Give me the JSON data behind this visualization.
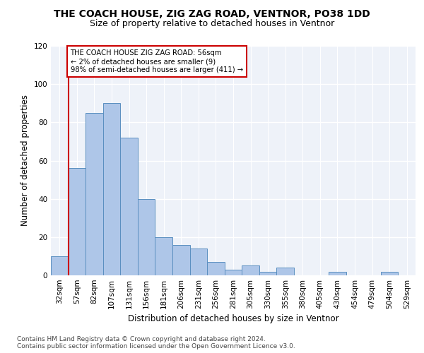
{
  "title": "THE COACH HOUSE, ZIG ZAG ROAD, VENTNOR, PO38 1DD",
  "subtitle": "Size of property relative to detached houses in Ventnor",
  "xlabel": "Distribution of detached houses by size in Ventnor",
  "ylabel": "Number of detached properties",
  "categories": [
    "32sqm",
    "57sqm",
    "82sqm",
    "107sqm",
    "131sqm",
    "156sqm",
    "181sqm",
    "206sqm",
    "231sqm",
    "256sqm",
    "281sqm",
    "305sqm",
    "330sqm",
    "355sqm",
    "380sqm",
    "405sqm",
    "430sqm",
    "454sqm",
    "479sqm",
    "504sqm",
    "529sqm"
  ],
  "values": [
    10,
    56,
    85,
    90,
    72,
    40,
    20,
    16,
    14,
    7,
    3,
    5,
    2,
    4,
    0,
    0,
    2,
    0,
    0,
    2,
    0
  ],
  "bar_color": "#aec6e8",
  "bar_edge_color": "#5a8fc0",
  "vline_color": "#cc0000",
  "annotation_text": "THE COACH HOUSE ZIG ZAG ROAD: 56sqm\n← 2% of detached houses are smaller (9)\n98% of semi-detached houses are larger (411) →",
  "annotation_box_color": "#cc0000",
  "ylim": [
    0,
    120
  ],
  "yticks": [
    0,
    20,
    40,
    60,
    80,
    100,
    120
  ],
  "footer": "Contains HM Land Registry data © Crown copyright and database right 2024.\nContains public sector information licensed under the Open Government Licence v3.0.",
  "background_color": "#eef2f9",
  "grid_color": "#ffffff",
  "title_fontsize": 10,
  "subtitle_fontsize": 9,
  "axis_label_fontsize": 8.5,
  "tick_fontsize": 7.5,
  "footer_fontsize": 6.5
}
